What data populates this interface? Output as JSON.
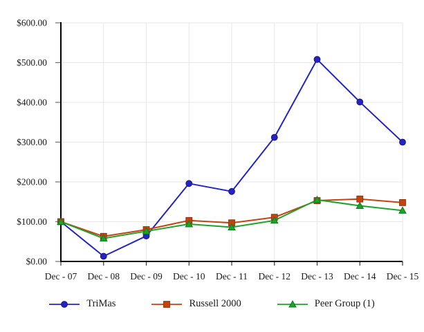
{
  "chart_data": {
    "type": "line",
    "title": "",
    "categories": [
      "Dec - 07",
      "Dec - 08",
      "Dec - 09",
      "Dec - 10",
      "Dec - 11",
      "Dec - 12",
      "Dec - 13",
      "Dec - 14",
      "Dec - 15"
    ],
    "series": [
      {
        "name": "TriMas",
        "marker": "circle",
        "color": "#2424C4",
        "edge_color": "#15157E",
        "values": [
          100,
          13,
          64,
          196,
          176,
          312,
          508,
          401,
          300
        ]
      },
      {
        "name": "Russell 2000",
        "marker": "square",
        "color": "#C5430F",
        "edge_color": "#8F3007",
        "values": [
          100,
          63,
          80,
          103,
          97,
          111,
          153,
          157,
          148
        ]
      },
      {
        "name": "Peer Group (1)",
        "marker": "triangle",
        "color": "#1CA32A",
        "edge_color": "#12791C",
        "values": [
          100,
          58,
          76,
          94,
          86,
          103,
          155,
          140,
          128
        ]
      }
    ],
    "ylim": [
      0,
      600
    ],
    "y_ticks": [
      0,
      100,
      200,
      300,
      400,
      500,
      600
    ],
    "y_tick_labels": [
      "$0.00",
      "$100.00",
      "$200.00",
      "$300.00",
      "$400.00",
      "$500.00",
      "$600.00"
    ],
    "grid": true,
    "legend_position": "bottom"
  },
  "colors": {
    "grid": "#E7E7E7",
    "axis": "#000000",
    "tick": "#6E6E6E",
    "text": "#1A1A1A",
    "background": "#FFFFFF"
  }
}
